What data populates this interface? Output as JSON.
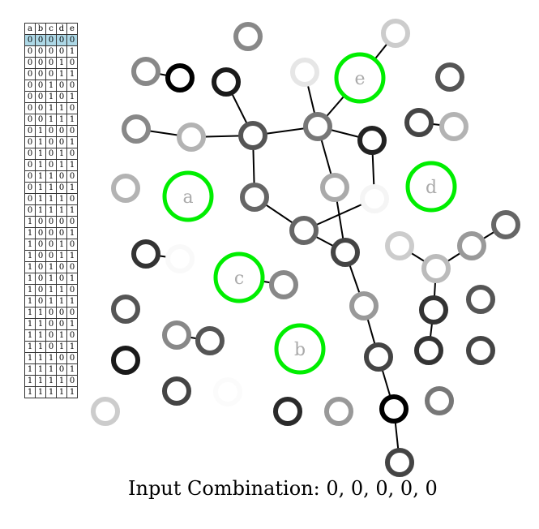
{
  "truth_table": {
    "headers": [
      "a",
      "b",
      "c",
      "d",
      "e"
    ],
    "active_row": 0,
    "rows": [
      [
        "0",
        "0",
        "0",
        "0",
        "0"
      ],
      [
        "0",
        "0",
        "0",
        "0",
        "1"
      ],
      [
        "0",
        "0",
        "0",
        "1",
        "0"
      ],
      [
        "0",
        "0",
        "0",
        "1",
        "1"
      ],
      [
        "0",
        "0",
        "1",
        "0",
        "0"
      ],
      [
        "0",
        "0",
        "1",
        "0",
        "1"
      ],
      [
        "0",
        "0",
        "1",
        "1",
        "0"
      ],
      [
        "0",
        "0",
        "1",
        "1",
        "1"
      ],
      [
        "0",
        "1",
        "0",
        "0",
        "0"
      ],
      [
        "0",
        "1",
        "0",
        "0",
        "1"
      ],
      [
        "0",
        "1",
        "0",
        "1",
        "0"
      ],
      [
        "0",
        "1",
        "0",
        "1",
        "1"
      ],
      [
        "0",
        "1",
        "1",
        "0",
        "0"
      ],
      [
        "0",
        "1",
        "1",
        "0",
        "1"
      ],
      [
        "0",
        "1",
        "1",
        "1",
        "0"
      ],
      [
        "0",
        "1",
        "1",
        "1",
        "1"
      ],
      [
        "1",
        "0",
        "0",
        "0",
        "0"
      ],
      [
        "1",
        "0",
        "0",
        "0",
        "1"
      ],
      [
        "1",
        "0",
        "0",
        "1",
        "0"
      ],
      [
        "1",
        "0",
        "0",
        "1",
        "1"
      ],
      [
        "1",
        "0",
        "1",
        "0",
        "0"
      ],
      [
        "1",
        "0",
        "1",
        "0",
        "1"
      ],
      [
        "1",
        "0",
        "1",
        "1",
        "0"
      ],
      [
        "1",
        "0",
        "1",
        "1",
        "1"
      ],
      [
        "1",
        "1",
        "0",
        "0",
        "0"
      ],
      [
        "1",
        "1",
        "0",
        "0",
        "1"
      ],
      [
        "1",
        "1",
        "0",
        "1",
        "0"
      ],
      [
        "1",
        "1",
        "0",
        "1",
        "1"
      ],
      [
        "1",
        "1",
        "1",
        "0",
        "0"
      ],
      [
        "1",
        "1",
        "1",
        "0",
        "1"
      ],
      [
        "1",
        "1",
        "1",
        "1",
        "0"
      ],
      [
        "1",
        "1",
        "1",
        "1",
        "1"
      ]
    ]
  },
  "inputs": [
    {
      "label": "a",
      "color": "#00ee00"
    },
    {
      "label": "b",
      "color": "#00ee00"
    },
    {
      "label": "c",
      "color": "#00ee00"
    },
    {
      "label": "d",
      "color": "#00ee00"
    },
    {
      "label": "e",
      "color": "#00ee00"
    }
  ],
  "caption": "Input Combination: 0, 0, 0, 0, 0",
  "colors": {
    "active_row": "#add8e6",
    "input_ring": "#00ee00",
    "input_label": "#aaaaaa",
    "wire": "#000000"
  }
}
